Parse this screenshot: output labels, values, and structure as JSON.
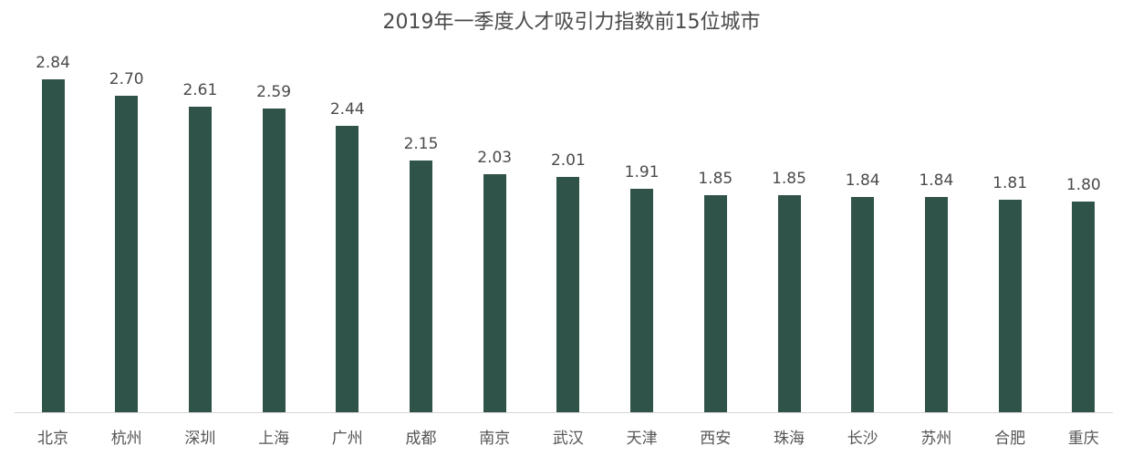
{
  "chart_data": {
    "type": "bar",
    "title": "2019年一季度人才吸引力指数前15位城市",
    "xlabel": "",
    "ylabel": "",
    "categories": [
      "北京",
      "杭州",
      "深圳",
      "上海",
      "广州",
      "成都",
      "南京",
      "武汉",
      "天津",
      "西安",
      "珠海",
      "长沙",
      "苏州",
      "合肥",
      "重庆"
    ],
    "values": [
      2.84,
      2.7,
      2.61,
      2.59,
      2.44,
      2.15,
      2.03,
      2.01,
      1.91,
      1.85,
      1.85,
      1.84,
      1.84,
      1.81,
      1.8
    ],
    "value_labels": [
      "2.84",
      "2.70",
      "2.61",
      "2.59",
      "2.44",
      "2.15",
      "2.03",
      "2.01",
      "1.91",
      "1.85",
      "1.85",
      "1.84",
      "1.84",
      "1.81",
      "1.80"
    ],
    "ylim": [
      0,
      3
    ],
    "grid": false,
    "legend": null,
    "bar_color": "#2f5249"
  }
}
